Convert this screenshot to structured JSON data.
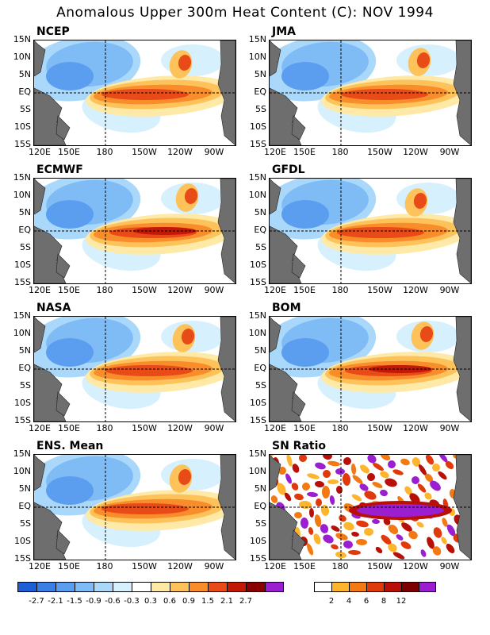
{
  "title": "Anomalous Upper 300m Heat Content (C): NOV 1994",
  "y_ticks": [
    "15N",
    "10N",
    "5N",
    "EQ",
    "5S",
    "10S",
    "15S"
  ],
  "x_ticks": [
    "120E",
    "150E",
    "180",
    "150W",
    "120W",
    "90W"
  ],
  "panels": [
    {
      "name": "NCEP"
    },
    {
      "name": "JMA"
    },
    {
      "name": "ECMWF"
    },
    {
      "name": "GFDL"
    },
    {
      "name": "NASA"
    },
    {
      "name": "BOM"
    },
    {
      "name": "ENS. Mean"
    },
    {
      "name": "SN Ratio"
    }
  ],
  "colorbar_anomaly": {
    "colors": [
      "#1f5fd6",
      "#3b7fe6",
      "#5b9ef0",
      "#7fbbf5",
      "#a9d8fa",
      "#d7f0fd",
      "#ffffff",
      "#ffe9a6",
      "#fdc25a",
      "#f98c2b",
      "#e84a18",
      "#c21808",
      "#8a0000",
      "#9b1fd1"
    ],
    "labels": [
      "-2.7",
      "-2.1",
      "-1.5",
      "-0.9",
      "-0.6",
      "-0.3",
      "0.3",
      "0.6",
      "0.9",
      "1.5",
      "2.1",
      "2.7"
    ]
  },
  "colorbar_ratio": {
    "colors": [
      "#ffffff",
      "#fdb52e",
      "#f37a12",
      "#e03a0c",
      "#b80f08",
      "#7d0000",
      "#9b1fd1"
    ],
    "labels": [
      "2",
      "4",
      "6",
      "8",
      "12"
    ]
  }
}
